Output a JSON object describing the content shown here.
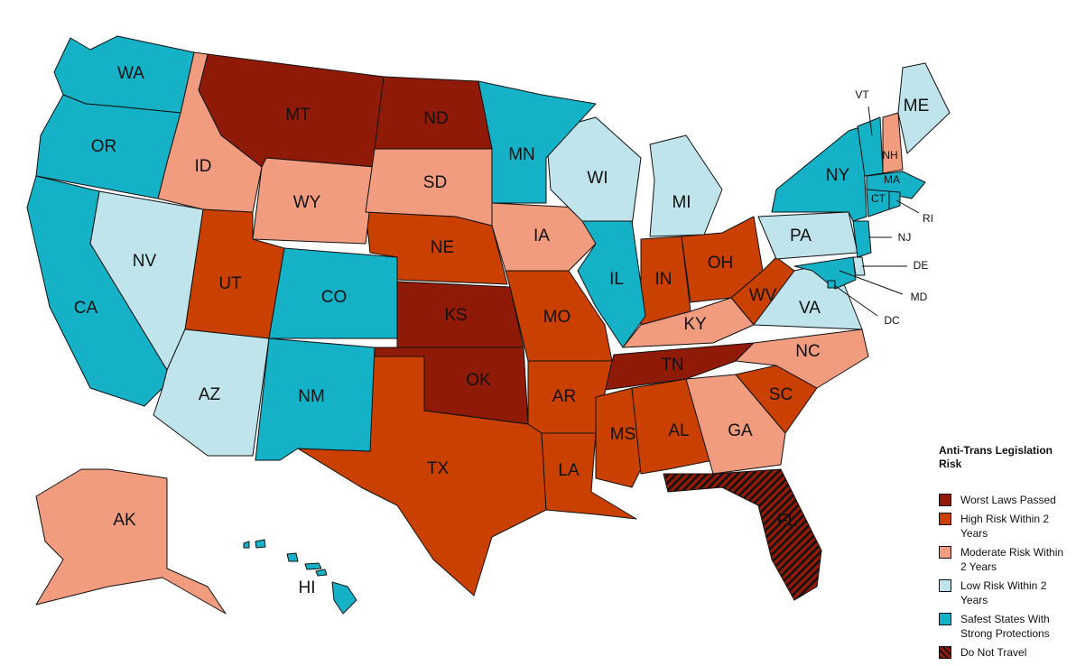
{
  "legend": {
    "title": "Anti-Trans Legislation Risk",
    "items": [
      {
        "label": "Worst Laws Passed",
        "color": "#8f1a08",
        "states": [
          "MT",
          "ND",
          "KS",
          "OK",
          "TN"
        ]
      },
      {
        "label": "High Risk Within 2 Years",
        "color": "#c94000",
        "states": [
          "UT",
          "NE",
          "MO",
          "AR",
          "TX",
          "LA",
          "MS",
          "AL",
          "SC",
          "IN",
          "OH",
          "WV"
        ]
      },
      {
        "label": "Moderate Risk Within 2 Years",
        "color": "#f19c7f",
        "states": [
          "ID",
          "WY",
          "SD",
          "IA",
          "KY",
          "NC",
          "GA",
          "AK",
          "NH"
        ]
      },
      {
        "label": "Low Risk Within 2 Years",
        "color": "#c0e4ec",
        "states": [
          "NV",
          "AZ",
          "WI",
          "MI",
          "PA",
          "VA",
          "ME",
          "DE"
        ]
      },
      {
        "label": "Safest States With Strong Protections",
        "color": "#15b1c6",
        "states": [
          "WA",
          "OR",
          "CA",
          "CO",
          "NM",
          "MN",
          "IL",
          "NY",
          "VT",
          "MA",
          "CT",
          "RI",
          "NJ",
          "MD",
          "DC",
          "HI"
        ]
      },
      {
        "label": "Do Not Travel",
        "color": "#8f1a08",
        "hatch": true,
        "states": [
          "FL"
        ]
      }
    ]
  }
}
